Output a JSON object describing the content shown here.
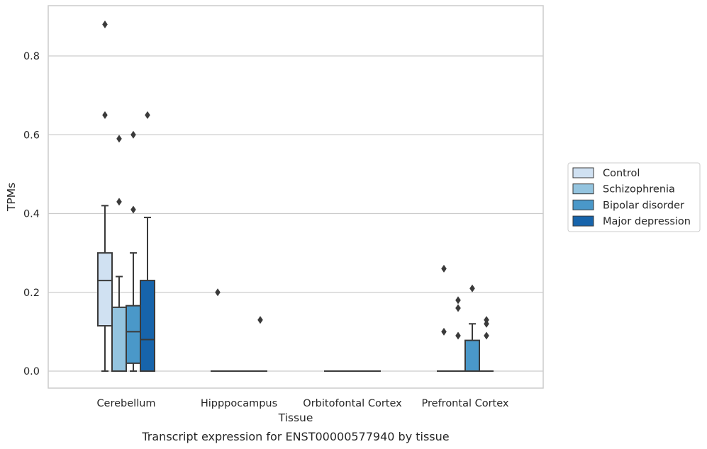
{
  "caption": "Transcript expression for ENST00000577940 by tissue",
  "chart_data": {
    "type": "box",
    "xlabel": "Tissue",
    "ylabel": "TPMs",
    "ylim": [
      -0.04,
      0.93
    ],
    "yticks": [
      "0.0",
      "0.2",
      "0.4",
      "0.6",
      "0.8"
    ],
    "grid": "horizontal",
    "legend_position": "right",
    "categories": [
      "Cerebellum",
      "Hipppocampus",
      "Orbitofontal Cortex",
      "Prefrontal Cortex"
    ],
    "series": [
      {
        "name": "Control",
        "color": "#d0e1f2",
        "boxes": [
          {
            "q1": 0.115,
            "median": 0.23,
            "q3": 0.3,
            "whisker_low": 0.0,
            "whisker_high": 0.42,
            "outliers": [
              0.65,
              0.88
            ]
          },
          {
            "q1": 0.0,
            "median": 0.0,
            "q3": 0.0,
            "whisker_low": 0.0,
            "whisker_high": 0.0,
            "outliers": [
              0.2
            ]
          },
          {
            "q1": 0.0,
            "median": 0.0,
            "q3": 0.0,
            "whisker_low": 0.0,
            "whisker_high": 0.0,
            "outliers": []
          },
          {
            "q1": 0.0,
            "median": 0.0,
            "q3": 0.0,
            "whisker_low": 0.0,
            "whisker_high": 0.0,
            "outliers": [
              0.1,
              0.26
            ]
          }
        ]
      },
      {
        "name": "Schizophrenia",
        "color": "#94c4df",
        "boxes": [
          {
            "q1": 0.0,
            "median": 0.0,
            "q3": 0.162,
            "whisker_low": 0.0,
            "whisker_high": 0.24,
            "outliers": [
              0.43,
              0.59
            ]
          },
          {
            "q1": 0.0,
            "median": 0.0,
            "q3": 0.0,
            "whisker_low": 0.0,
            "whisker_high": 0.0,
            "outliers": []
          },
          {
            "q1": 0.0,
            "median": 0.0,
            "q3": 0.0,
            "whisker_low": 0.0,
            "whisker_high": 0.0,
            "outliers": []
          },
          {
            "q1": 0.0,
            "median": 0.0,
            "q3": 0.0,
            "whisker_low": 0.0,
            "whisker_high": 0.0,
            "outliers": [
              0.09,
              0.16,
              0.18
            ]
          }
        ]
      },
      {
        "name": "Bipolar disorder",
        "color": "#4a98c9",
        "boxes": [
          {
            "q1": 0.02,
            "median": 0.1,
            "q3": 0.166,
            "whisker_low": 0.0,
            "whisker_high": 0.3,
            "outliers": [
              0.41,
              0.6
            ]
          },
          {
            "q1": 0.0,
            "median": 0.0,
            "q3": 0.0,
            "whisker_low": 0.0,
            "whisker_high": 0.0,
            "outliers": []
          },
          {
            "q1": 0.0,
            "median": 0.0,
            "q3": 0.0,
            "whisker_low": 0.0,
            "whisker_high": 0.0,
            "outliers": []
          },
          {
            "q1": 0.0,
            "median": 0.0,
            "q3": 0.078,
            "whisker_low": 0.0,
            "whisker_high": 0.12,
            "outliers": [
              0.21
            ]
          }
        ]
      },
      {
        "name": "Major depression",
        "color": "#1764ab",
        "boxes": [
          {
            "q1": 0.0,
            "median": 0.08,
            "q3": 0.23,
            "whisker_low": 0.0,
            "whisker_high": 0.39,
            "outliers": [
              0.65
            ]
          },
          {
            "q1": 0.0,
            "median": 0.0,
            "q3": 0.0,
            "whisker_low": 0.0,
            "whisker_high": 0.0,
            "outliers": [
              0.13
            ]
          },
          {
            "q1": 0.0,
            "median": 0.0,
            "q3": 0.0,
            "whisker_low": 0.0,
            "whisker_high": 0.0,
            "outliers": []
          },
          {
            "q1": 0.0,
            "median": 0.0,
            "q3": 0.0,
            "whisker_low": 0.0,
            "whisker_high": 0.0,
            "outliers": [
              0.09,
              0.12,
              0.13
            ]
          }
        ]
      }
    ]
  }
}
